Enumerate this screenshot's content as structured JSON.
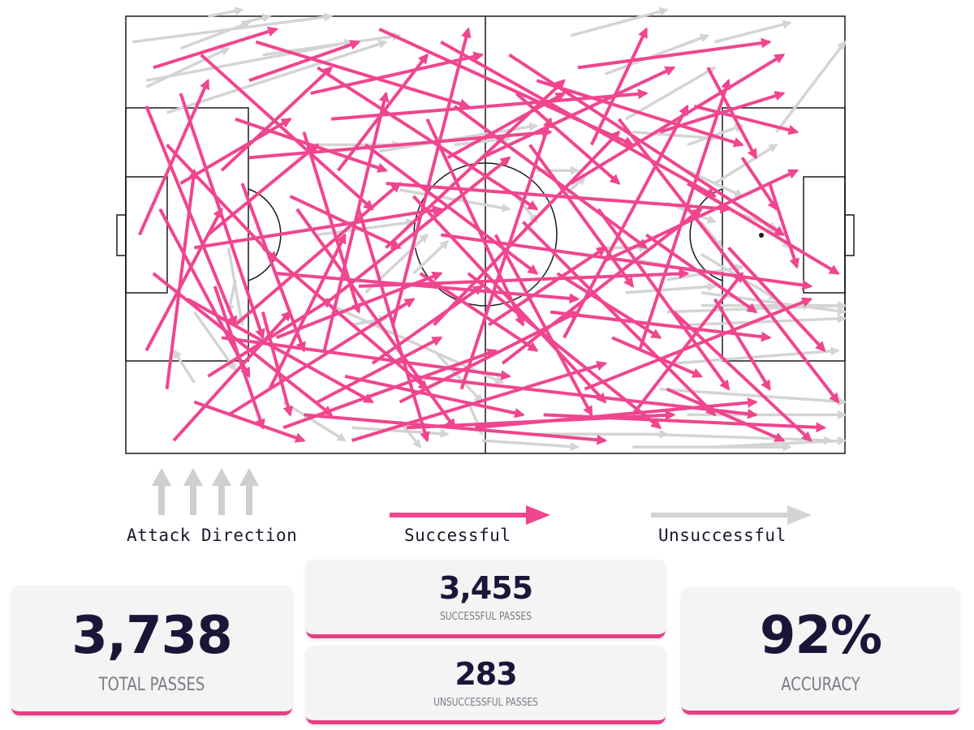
{
  "legend": {
    "attack_direction": "Attack Direction",
    "successful": "Successful",
    "unsuccessful": "Unsuccessful"
  },
  "colors": {
    "successful": "#f0458f",
    "unsuccessful": "#d4d4d4",
    "pitch_lines": "#1a1a1a",
    "number": "#1c1538",
    "card_accent": "#e63f86"
  },
  "stats": {
    "total_passes": {
      "value": "3,738",
      "label": "TOTAL PASSES"
    },
    "successful_passes": {
      "value": "3,455",
      "label": "SUCCESSFUL PASSES"
    },
    "unsuccessful_passes": {
      "value": "283",
      "label": "UNSUCCESSFUL PASSES"
    },
    "accuracy": {
      "value": "92%",
      "label": "ACCURACY"
    }
  },
  "chart_data": {
    "type": "scatter",
    "pitch": {
      "length": 105,
      "width": 68
    },
    "series": [
      {
        "name": "Successful",
        "color": "#f0458f",
        "passes": [
          [
            4,
            40,
            30,
            62
          ],
          [
            8,
            12,
            20,
            50
          ],
          [
            10,
            60,
            26,
            66
          ],
          [
            3,
            52,
            14,
            30
          ],
          [
            6,
            20,
            22,
            38
          ],
          [
            12,
            34,
            28,
            20
          ],
          [
            5,
            30,
            18,
            56
          ],
          [
            9,
            44,
            36,
            60
          ],
          [
            14,
            24,
            30,
            8
          ],
          [
            16,
            48,
            40,
            26
          ],
          [
            20,
            36,
            44,
            58
          ],
          [
            18,
            10,
            34,
            4
          ],
          [
            22,
            50,
            46,
            40
          ],
          [
            25,
            30,
            48,
            64
          ],
          [
            27,
            12,
            52,
            6
          ],
          [
            30,
            44,
            56,
            22
          ],
          [
            32,
            56,
            58,
            62
          ],
          [
            35,
            20,
            60,
            40
          ],
          [
            38,
            36,
            64,
            10
          ],
          [
            40,
            60,
            66,
            46
          ],
          [
            42,
            28,
            70,
            60
          ],
          [
            45,
            48,
            72,
            18
          ],
          [
            48,
            14,
            76,
            36
          ],
          [
            50,
            40,
            78,
            64
          ],
          [
            52,
            22,
            80,
            8
          ],
          [
            55,
            54,
            84,
            30
          ],
          [
            58,
            32,
            86,
            62
          ],
          [
            60,
            10,
            90,
            20
          ],
          [
            62,
            46,
            94,
            50
          ],
          [
            65,
            26,
            96,
            6
          ],
          [
            67,
            58,
            100,
            44
          ],
          [
            70,
            38,
            98,
            24
          ],
          [
            72,
            16,
            104,
            60
          ],
          [
            75,
            52,
            88,
            10
          ],
          [
            7,
            66,
            24,
            46
          ],
          [
            11,
            6,
            36,
            30
          ],
          [
            15,
            62,
            42,
            44
          ],
          [
            19,
            4,
            50,
            14
          ],
          [
            23,
            64,
            54,
            52
          ],
          [
            28,
            8,
            60,
            30
          ],
          [
            33,
            66,
            70,
            54
          ],
          [
            37,
            2,
            74,
            20
          ],
          [
            41,
            64,
            80,
            62
          ],
          [
            46,
            4,
            86,
            28
          ],
          [
            51,
            64,
            92,
            60
          ],
          [
            56,
            6,
            96,
            34
          ],
          [
            61,
            62,
            102,
            64
          ],
          [
            66,
            8,
            94,
            4
          ],
          [
            3,
            14,
            16,
            48
          ],
          [
            2,
            34,
            12,
            10
          ],
          [
            6,
            58,
            10,
            24
          ],
          [
            13,
            42,
            20,
            64
          ],
          [
            17,
            26,
            26,
            52
          ],
          [
            21,
            58,
            32,
            34
          ],
          [
            26,
            18,
            34,
            46
          ],
          [
            29,
            52,
            38,
            12
          ],
          [
            34,
            30,
            44,
            66
          ],
          [
            39,
            48,
            50,
            2
          ],
          [
            44,
            16,
            58,
            48
          ],
          [
            49,
            58,
            62,
            16
          ],
          [
            54,
            34,
            68,
            62
          ],
          [
            59,
            20,
            74,
            42
          ],
          [
            64,
            50,
            82,
            14
          ],
          [
            69,
            30,
            88,
            58
          ],
          [
            74,
            62,
            90,
            40
          ],
          [
            78,
            18,
            96,
            12
          ],
          [
            80,
            46,
            100,
            66
          ],
          [
            82,
            26,
            104,
            40
          ],
          [
            85,
            8,
            92,
            22
          ],
          [
            88,
            36,
            102,
            52
          ],
          [
            90,
            22,
            95,
            30
          ],
          [
            94,
            26,
            98,
            39
          ],
          [
            4,
            8,
            22,
            2
          ],
          [
            8,
            26,
            24,
            16
          ],
          [
            12,
            56,
            30,
            44
          ],
          [
            16,
            16,
            38,
            24
          ],
          [
            20,
            46,
            24,
            62
          ],
          [
            24,
            28,
            40,
            36
          ],
          [
            28,
            60,
            46,
            50
          ],
          [
            31,
            24,
            44,
            6
          ],
          [
            36,
            54,
            52,
            42
          ],
          [
            43,
            40,
            60,
            52
          ],
          [
            47,
            22,
            64,
            12
          ],
          [
            53,
            48,
            70,
            36
          ],
          [
            57,
            12,
            72,
            26
          ],
          [
            63,
            40,
            78,
            50
          ],
          [
            68,
            20,
            76,
            2
          ],
          [
            71,
            50,
            84,
            56
          ],
          [
            76,
            34,
            92,
            46
          ],
          [
            79,
            58,
            96,
            66
          ],
          [
            83,
            14,
            98,
            18
          ],
          [
            86,
            44,
            94,
            58
          ],
          [
            10,
            36,
            46,
            30
          ],
          [
            14,
            50,
            56,
            56
          ],
          [
            18,
            22,
            62,
            18
          ],
          [
            22,
            40,
            66,
            44
          ],
          [
            26,
            62,
            70,
            66
          ],
          [
            30,
            16,
            76,
            12
          ],
          [
            34,
            42,
            82,
            40
          ],
          [
            38,
            26,
            88,
            30
          ],
          [
            42,
            56,
            92,
            62
          ],
          [
            46,
            34,
            100,
            42
          ]
        ]
      },
      {
        "name": "Unsuccessful",
        "color": "#d4d4d4",
        "passes": [
          [
            1,
            4,
            30,
            0
          ],
          [
            3,
            10,
            33,
            4
          ],
          [
            6,
            15,
            38,
            4
          ],
          [
            12,
            0,
            17,
            -1
          ],
          [
            17,
            1,
            21,
            0
          ],
          [
            20,
            6,
            40,
            3
          ],
          [
            3,
            11,
            15,
            5
          ],
          [
            27,
            20,
            40,
            20
          ],
          [
            37,
            21,
            60,
            17
          ],
          [
            40,
            27,
            56,
            30
          ],
          [
            30,
            45,
            55,
            57
          ],
          [
            35,
            43,
            44,
            34
          ],
          [
            42,
            40,
            47,
            35
          ],
          [
            28,
            34,
            42,
            32
          ],
          [
            33,
            48,
            38,
            47
          ],
          [
            15,
            36,
            17,
            48
          ],
          [
            10,
            46,
            16,
            55
          ],
          [
            45,
            52,
            52,
            60
          ],
          [
            65,
            3,
            79,
            -1
          ],
          [
            70,
            9,
            85,
            3
          ],
          [
            73,
            16,
            86,
            8
          ],
          [
            75,
            38,
            85,
            40
          ],
          [
            74,
            18,
            86,
            19
          ],
          [
            79,
            29,
            86,
            32
          ],
          [
            82,
            24,
            90,
            28
          ],
          [
            84,
            32,
            87,
            36
          ],
          [
            88,
            30,
            95,
            33
          ],
          [
            86,
            26,
            95,
            20
          ],
          [
            95,
            18,
            105,
            4
          ],
          [
            86,
            4,
            97,
            1
          ],
          [
            79,
            46,
            105,
            45
          ],
          [
            82,
            48,
            105,
            47
          ],
          [
            84,
            43,
            105,
            46
          ],
          [
            80,
            54,
            104,
            52
          ],
          [
            78,
            58,
            105,
            60
          ],
          [
            82,
            62,
            105,
            62
          ],
          [
            76,
            65,
            103,
            66
          ],
          [
            74,
            67,
            97,
            67
          ],
          [
            86,
            67,
            105,
            66
          ],
          [
            60,
            65,
            79,
            65
          ],
          [
            52,
            66,
            66,
            67
          ],
          [
            50,
            60,
            52,
            65
          ],
          [
            40,
            63,
            43,
            67
          ],
          [
            33,
            64,
            47,
            65
          ],
          [
            23,
            60,
            32,
            66
          ],
          [
            16,
            41,
            15,
            46
          ],
          [
            8,
            5,
            18,
            1
          ],
          [
            10,
            57,
            7,
            52
          ],
          [
            64,
            28,
            67,
            25
          ],
          [
            57,
            28,
            60,
            32
          ],
          [
            48,
            20,
            56,
            19
          ],
          [
            60,
            24,
            66,
            24
          ],
          [
            69,
            36,
            76,
            36
          ],
          [
            73,
            43,
            86,
            42
          ],
          [
            79,
            41,
            90,
            39
          ],
          [
            82,
            20,
            90,
            17
          ],
          [
            84,
            37,
            95,
            44
          ],
          [
            92,
            31,
            97,
            36
          ],
          [
            84,
            45,
            100,
            45
          ],
          [
            90,
            45,
            105,
            45
          ]
        ]
      }
    ]
  }
}
